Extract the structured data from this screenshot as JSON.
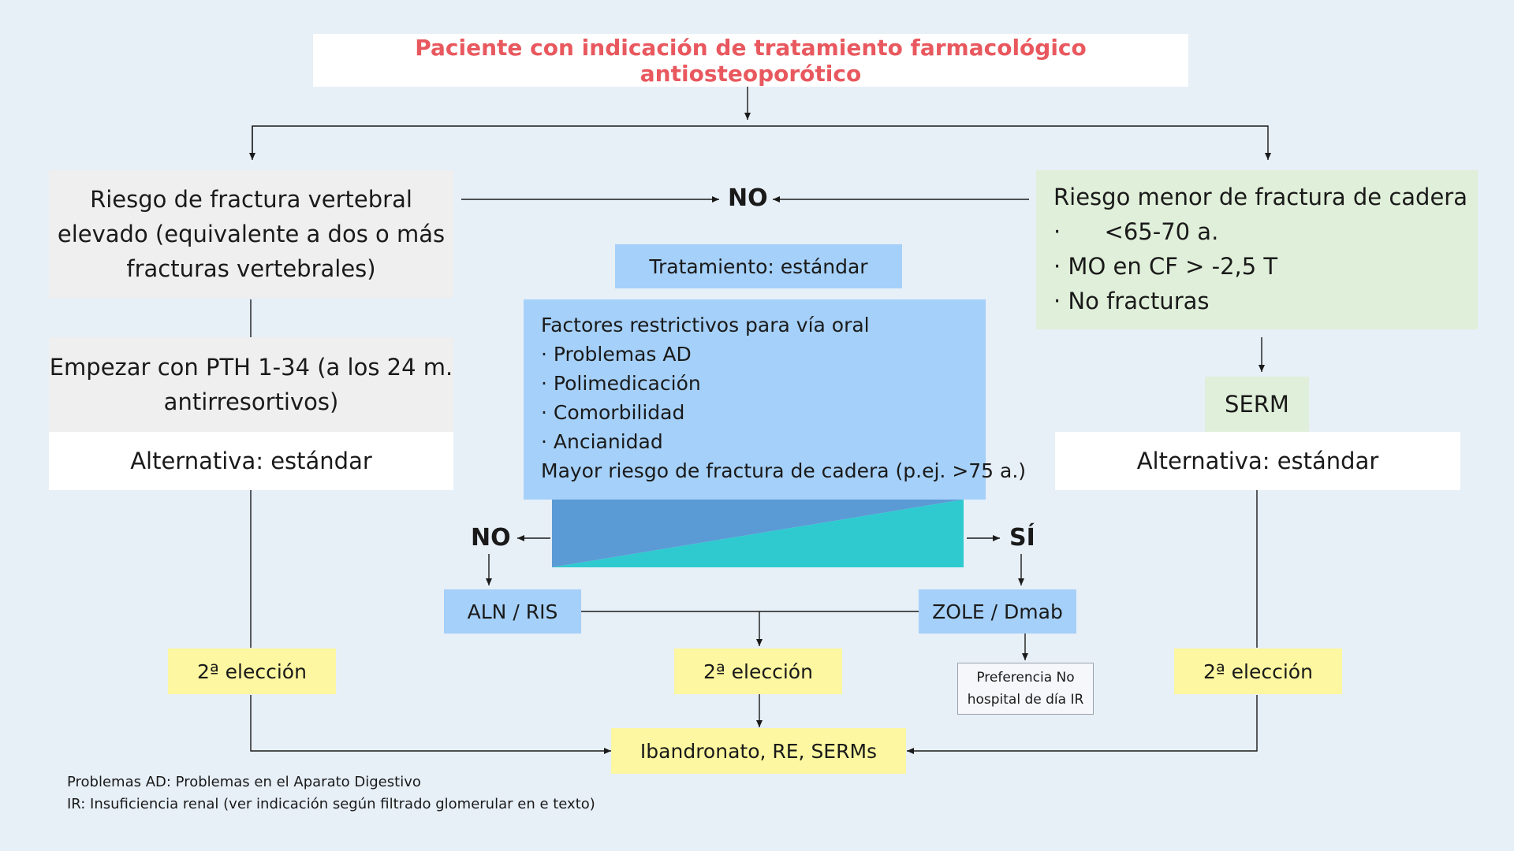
{
  "title": "Paciente con indicación de tratamiento farmacológico antiosteoporótico",
  "left": {
    "risk_lines": [
      "Riesgo de fractura vertebral",
      "elevado (equivalente a dos o más",
      "fracturas vertebrales)"
    ],
    "start_lines": [
      "Empezar con PTH 1-34 (a los 24 m.",
      "antirresortivos)"
    ],
    "alternative": "Alternativa: estándar",
    "second_choice": "2ª elección"
  },
  "right": {
    "risk_title": "Riesgo menor de fractura de cadera",
    "criteria": [
      "·      <65-70 a.",
      "· MO en CF > -2,5 T",
      "· No fracturas"
    ],
    "serm": "SERM",
    "alternative": "Alternativa: estándar",
    "second_choice": "2ª elección"
  },
  "top_no": "NO",
  "center": {
    "treatment": "Tratamiento: estándar",
    "factors_title": "Factores restrictivos para vía oral",
    "factors": [
      "· Problemas AD",
      "· Polimedicación",
      "· Comorbilidad",
      "· Ancianidad"
    ],
    "factors_last": "Mayor riesgo de fractura de cadera (p.ej. >75 a.)",
    "no_label": "NO",
    "yes_label": "SÍ",
    "aln": "ALN / RIS",
    "zole": "ZOLE / Dmab",
    "preference_lines": [
      "Preferencia No",
      "hospital de día IR"
    ],
    "second_choice": "2ª elección",
    "final": "Ibandronato, RE, SERMs"
  },
  "footnotes": [
    "Problemas AD: Problemas en el Aparato Digestivo",
    "IR: Insuficiencia renal  (ver indicación según filtrado glomerular en e texto)"
  ],
  "colors": {
    "title_red": "#e8585e",
    "blue_box": "#a5d0f9",
    "yellow_box": "#fcf7a0",
    "green_box": "#e0efd9",
    "triangle_blue": "#5b9bd5",
    "triangle_teal": "#2ecad0"
  }
}
